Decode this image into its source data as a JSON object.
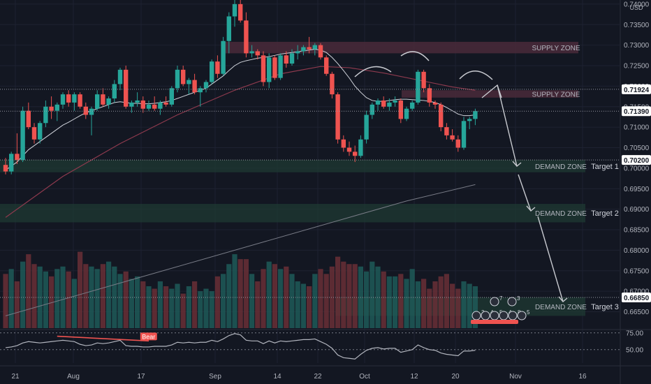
{
  "chart_data": {
    "type": "candlestick",
    "currency": "USD",
    "y_ticks": [
      "0.74000",
      "0.73500",
      "0.73000",
      "0.72500",
      "0.72000",
      "0.71500",
      "0.71000",
      "0.70500",
      "0.70000",
      "0.69500",
      "0.69000",
      "0.68500",
      "0.68000",
      "0.67500",
      "0.67000",
      "0.66500"
    ],
    "y_range": [
      0.661,
      0.741
    ],
    "price_tags": [
      {
        "label": "0.71924",
        "value": 0.71924,
        "style": "white"
      },
      {
        "label": "0.71390",
        "value": 0.7139,
        "style": "white"
      },
      {
        "label": "0.70200",
        "value": 0.702,
        "style": "white"
      },
      {
        "label": "0.66850",
        "value": 0.6685,
        "style": "white"
      }
    ],
    "x_labels": [
      "21",
      "Aug",
      "17",
      "Sep",
      "14",
      "22",
      "Oct",
      "12",
      "20",
      "Nov",
      "16"
    ],
    "candles": [
      [
        0.7008,
        0.7025,
        0.6985,
        0.6992
      ],
      [
        0.6992,
        0.704,
        0.6985,
        0.7035
      ],
      [
        0.7035,
        0.7085,
        0.701,
        0.702
      ],
      [
        0.702,
        0.715,
        0.7015,
        0.714
      ],
      [
        0.714,
        0.716,
        0.7095,
        0.71
      ],
      [
        0.71,
        0.711,
        0.706,
        0.707
      ],
      [
        0.707,
        0.7115,
        0.706,
        0.711
      ],
      [
        0.711,
        0.7165,
        0.71,
        0.715
      ],
      [
        0.715,
        0.7175,
        0.712,
        0.714
      ],
      [
        0.714,
        0.716,
        0.7115,
        0.7155
      ],
      [
        0.7155,
        0.7185,
        0.7145,
        0.718
      ],
      [
        0.718,
        0.719,
        0.715,
        0.716
      ],
      [
        0.716,
        0.7185,
        0.714,
        0.718
      ],
      [
        0.718,
        0.7185,
        0.7145,
        0.715
      ],
      [
        0.715,
        0.716,
        0.712,
        0.713
      ],
      [
        0.713,
        0.715,
        0.708,
        0.7145
      ],
      [
        0.7145,
        0.719,
        0.714,
        0.718
      ],
      [
        0.718,
        0.7195,
        0.715,
        0.7155
      ],
      [
        0.7155,
        0.7175,
        0.7145,
        0.717
      ],
      [
        0.717,
        0.7215,
        0.716,
        0.7205
      ],
      [
        0.7205,
        0.7245,
        0.719,
        0.724
      ],
      [
        0.724,
        0.725,
        0.7145,
        0.715
      ],
      [
        0.715,
        0.7165,
        0.7135,
        0.716
      ],
      [
        0.716,
        0.7185,
        0.715,
        0.7165
      ],
      [
        0.7165,
        0.7175,
        0.7135,
        0.7145
      ],
      [
        0.7145,
        0.7165,
        0.714,
        0.7155
      ],
      [
        0.7155,
        0.7175,
        0.714,
        0.7145
      ],
      [
        0.7145,
        0.7165,
        0.713,
        0.716
      ],
      [
        0.716,
        0.7175,
        0.715,
        0.7155
      ],
      [
        0.7155,
        0.72,
        0.715,
        0.7195
      ],
      [
        0.7195,
        0.725,
        0.7185,
        0.724
      ],
      [
        0.724,
        0.725,
        0.72,
        0.7205
      ],
      [
        0.7205,
        0.722,
        0.718,
        0.7215
      ],
      [
        0.7215,
        0.723,
        0.718,
        0.7185
      ],
      [
        0.7185,
        0.72,
        0.715,
        0.7195
      ],
      [
        0.7195,
        0.7215,
        0.7185,
        0.721
      ],
      [
        0.721,
        0.7265,
        0.7205,
        0.726
      ],
      [
        0.726,
        0.7275,
        0.722,
        0.723
      ],
      [
        0.723,
        0.732,
        0.7225,
        0.731
      ],
      [
        0.731,
        0.738,
        0.728,
        0.737
      ],
      [
        0.737,
        0.741,
        0.7345,
        0.74
      ],
      [
        0.74,
        0.741,
        0.7355,
        0.736
      ],
      [
        0.736,
        0.738,
        0.727,
        0.728
      ],
      [
        0.728,
        0.73,
        0.727,
        0.7285
      ],
      [
        0.7285,
        0.729,
        0.7265,
        0.7275
      ],
      [
        0.7275,
        0.7285,
        0.72,
        0.721
      ],
      [
        0.721,
        0.728,
        0.7195,
        0.727
      ],
      [
        0.727,
        0.7275,
        0.7215,
        0.722
      ],
      [
        0.722,
        0.728,
        0.7215,
        0.7275
      ],
      [
        0.7275,
        0.7285,
        0.7245,
        0.7255
      ],
      [
        0.7255,
        0.729,
        0.725,
        0.728
      ],
      [
        0.728,
        0.73,
        0.7265,
        0.7285
      ],
      [
        0.7285,
        0.73,
        0.7275,
        0.7295
      ],
      [
        0.7295,
        0.732,
        0.728,
        0.729
      ],
      [
        0.729,
        0.7305,
        0.7275,
        0.73
      ],
      [
        0.73,
        0.7305,
        0.7265,
        0.727
      ],
      [
        0.727,
        0.7275,
        0.7225,
        0.723
      ],
      [
        0.723,
        0.7235,
        0.717,
        0.718
      ],
      [
        0.718,
        0.7185,
        0.706,
        0.707
      ],
      [
        0.707,
        0.708,
        0.704,
        0.705
      ],
      [
        0.705,
        0.7065,
        0.703,
        0.704
      ],
      [
        0.704,
        0.7055,
        0.7015,
        0.703
      ],
      [
        0.703,
        0.708,
        0.7025,
        0.707
      ],
      [
        0.707,
        0.714,
        0.706,
        0.713
      ],
      [
        0.713,
        0.716,
        0.712,
        0.7155
      ],
      [
        0.7155,
        0.717,
        0.714,
        0.7165
      ],
      [
        0.7165,
        0.7175,
        0.7145,
        0.715
      ],
      [
        0.715,
        0.717,
        0.714,
        0.716
      ],
      [
        0.716,
        0.7175,
        0.715,
        0.7165
      ],
      [
        0.7165,
        0.717,
        0.711,
        0.712
      ],
      [
        0.712,
        0.715,
        0.7115,
        0.7145
      ],
      [
        0.7145,
        0.7165,
        0.714,
        0.716
      ],
      [
        0.716,
        0.724,
        0.7155,
        0.7235
      ],
      [
        0.7235,
        0.724,
        0.7185,
        0.7195
      ],
      [
        0.7195,
        0.7205,
        0.715,
        0.716
      ],
      [
        0.716,
        0.7165,
        0.7145,
        0.7155
      ],
      [
        0.7155,
        0.716,
        0.709,
        0.71
      ],
      [
        0.71,
        0.711,
        0.707,
        0.708
      ],
      [
        0.708,
        0.7095,
        0.7065,
        0.707
      ],
      [
        0.707,
        0.708,
        0.704,
        0.705
      ],
      [
        0.705,
        0.7125,
        0.7045,
        0.7115
      ],
      [
        0.7115,
        0.7125,
        0.7095,
        0.712
      ],
      [
        0.712,
        0.7145,
        0.7105,
        0.7139
      ]
    ],
    "volume_scale_max": 0.034,
    "volumes": [
      0.022,
      0.024,
      0.019,
      0.027,
      0.03,
      0.026,
      0.025,
      0.023,
      0.021,
      0.024,
      0.025,
      0.023,
      0.02,
      0.031,
      0.026,
      0.025,
      0.024,
      0.026,
      0.027,
      0.025,
      0.022,
      0.023,
      0.02,
      0.021,
      0.019,
      0.017,
      0.016,
      0.019,
      0.017,
      0.016,
      0.018,
      0.014,
      0.017,
      0.019,
      0.015,
      0.016,
      0.015,
      0.021,
      0.022,
      0.026,
      0.03,
      0.028,
      0.028,
      0.022,
      0.019,
      0.024,
      0.027,
      0.026,
      0.024,
      0.025,
      0.022,
      0.019,
      0.018,
      0.017,
      0.022,
      0.024,
      0.022,
      0.025,
      0.029,
      0.027,
      0.026,
      0.026,
      0.025,
      0.023,
      0.027,
      0.025,
      0.023,
      0.021,
      0.021,
      0.022,
      0.02,
      0.024,
      0.019,
      0.02,
      0.016,
      0.019,
      0.021,
      0.022,
      0.018,
      0.016,
      0.019,
      0.018,
      0.017
    ],
    "ma_fast": [
      0.6995,
      0.7005,
      0.7015,
      0.703,
      0.7045,
      0.7055,
      0.7065,
      0.7075,
      0.7085,
      0.7095,
      0.7105,
      0.7112,
      0.712,
      0.7128,
      0.7135,
      0.714,
      0.7145,
      0.715,
      0.7155,
      0.716,
      0.7162,
      0.716,
      0.7158,
      0.7158,
      0.7157,
      0.7157,
      0.7158,
      0.716,
      0.7162,
      0.7165,
      0.717,
      0.7175,
      0.718,
      0.7185,
      0.719,
      0.7195,
      0.7205,
      0.7215,
      0.7225,
      0.7238,
      0.725,
      0.7258,
      0.7262,
      0.7265,
      0.7268,
      0.727,
      0.7272,
      0.7275,
      0.7278,
      0.728,
      0.7282,
      0.7284,
      0.7286,
      0.7288,
      0.729,
      0.7288,
      0.7282,
      0.727,
      0.7255,
      0.7238,
      0.722,
      0.72,
      0.7185,
      0.7172,
      0.7165,
      0.7163,
      0.7163,
      0.7165,
      0.7167,
      0.7168,
      0.7168,
      0.7167,
      0.7166,
      0.7165,
      0.7163,
      0.716,
      0.7155,
      0.7148,
      0.714,
      0.7132,
      0.7128,
      0.7128,
      0.713
    ],
    "ma_slow_red": [
      [
        0,
        0.688
      ],
      [
        10,
        0.698
      ],
      [
        20,
        0.706
      ],
      [
        30,
        0.713
      ],
      [
        40,
        0.719
      ],
      [
        48,
        0.723
      ],
      [
        55,
        0.7248
      ],
      [
        60,
        0.7245
      ],
      [
        66,
        0.7232
      ],
      [
        72,
        0.7215
      ],
      [
        78,
        0.7198
      ],
      [
        82,
        0.719
      ]
    ],
    "ma_long_gray": [
      [
        0,
        0.664
      ],
      [
        15,
        0.67
      ],
      [
        30,
        0.676
      ],
      [
        45,
        0.682
      ],
      [
        60,
        0.688
      ],
      [
        70,
        0.692
      ],
      [
        82,
        0.696
      ]
    ],
    "rsi_ticks": [
      "75.00",
      "50.00"
    ],
    "rsi": [
      53,
      54,
      56,
      60,
      62,
      61,
      60,
      61,
      62,
      63,
      64,
      63,
      62,
      58,
      56,
      57,
      60,
      59,
      60,
      62,
      64,
      56,
      55,
      55,
      54,
      54,
      55,
      55,
      55,
      57,
      61,
      60,
      61,
      60,
      61,
      61,
      64,
      62,
      66,
      71,
      74,
      72,
      64,
      63,
      63,
      59,
      63,
      60,
      63,
      62,
      63,
      64,
      65,
      65,
      66,
      62,
      58,
      52,
      42,
      38,
      37,
      36,
      43,
      49,
      52,
      53,
      51,
      52,
      52,
      46,
      48,
      50,
      57,
      53,
      50,
      49,
      45,
      43,
      42,
      41,
      48,
      48,
      49
    ],
    "rsi_label": "Bear",
    "annotations": {
      "supply_zones": [
        {
          "label": "SUPPLY ZONE",
          "y_top": 0.7308,
          "y_bottom": 0.728
        },
        {
          "label": "SUPPLY ZONE",
          "y_top": 0.719,
          "y_bottom": 0.7172
        }
      ],
      "demand_zones": [
        {
          "label": "DEMAND ZONE",
          "target": "Target 1",
          "y_top": 0.702,
          "y_bottom": 0.699
        },
        {
          "label": "DEMAND ZONE",
          "target": "Target 2",
          "y_top": 0.6913,
          "y_bottom": 0.6868
        },
        {
          "label": "DEMAND ZONE",
          "target": "Target 3",
          "y_top": 0.6685,
          "y_bottom": 0.664
        }
      ],
      "emoji_counts": [
        "7",
        "3",
        "3",
        "4",
        "5",
        "4",
        "8",
        "5"
      ]
    }
  },
  "colors": {
    "up": "#26a69a",
    "down": "#ef5350",
    "bg": "#131722",
    "grid": "#1e2231",
    "text": "#b2b5be",
    "supply": "#4a2a3a",
    "demand": "#1f3a33"
  }
}
